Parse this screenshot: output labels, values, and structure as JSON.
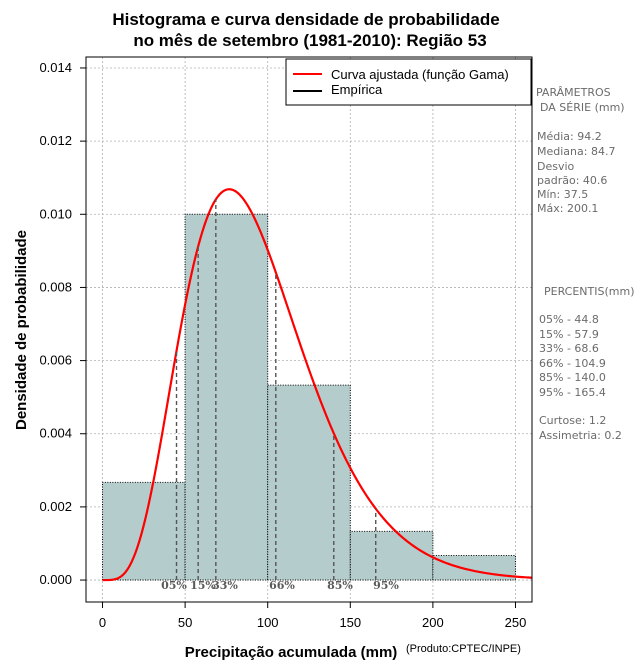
{
  "chart_data": {
    "type": "histogram",
    "title_line1": "Histograma e curva densidade de probabilidade",
    "title_line2": "no mês de setembro (1981-2010): Região 53",
    "xlabel": "Precipitação acumulada (mm)",
    "ylabel": "Densidade de probabilidade",
    "credit": "(Produto:CPTEC/INPE)",
    "xlim": [
      -10,
      260
    ],
    "ylim": [
      -0.0006,
      0.0143
    ],
    "x_ticks": [
      0,
      50,
      100,
      150,
      200,
      250
    ],
    "x_tick_labels": [
      "0",
      "50",
      "100",
      "150",
      "200",
      "250"
    ],
    "y_ticks": [
      0,
      0.002,
      0.004,
      0.006,
      0.008,
      0.01,
      0.012,
      0.014
    ],
    "y_tick_labels": [
      "0.000",
      "0.002",
      "0.004",
      "0.006",
      "0.008",
      "0.010",
      "0.012",
      "0.014"
    ],
    "grid": true,
    "bins": [
      {
        "start": 0,
        "end": 50,
        "density": 0.00267
      },
      {
        "start": 50,
        "end": 100,
        "density": 0.01
      },
      {
        "start": 100,
        "end": 150,
        "density": 0.00533
      },
      {
        "start": 150,
        "end": 200,
        "density": 0.00133
      },
      {
        "start": 200,
        "end": 250,
        "density": 0.00067
      }
    ],
    "gamma_fit": {
      "mean": 94.2,
      "sd": 40.6
    },
    "percentile_lines": [
      {
        "label": "05%",
        "value": 44.8
      },
      {
        "label": "15%",
        "value": 57.9
      },
      {
        "label": "33%",
        "value": 68.6
      },
      {
        "label": "66%",
        "value": 104.9
      },
      {
        "label": "85%",
        "value": 140.0
      },
      {
        "label": "95%",
        "value": 165.4
      }
    ],
    "legend": {
      "position": "top-right",
      "entries": [
        {
          "label": "Curva ajustada (função Gama)",
          "color": "#ff0000"
        },
        {
          "label": "Empírica",
          "color": "#000000"
        }
      ]
    },
    "colors": {
      "bar_fill": "#b4cccc",
      "curve": "#ff0000",
      "grid": "#b0b0b0",
      "percentile": "#555555"
    }
  },
  "side_panel": {
    "params_title_1": "PARÂMETROS",
    "params_title_2": "DA SÉRIE (mm)",
    "params": [
      "Média:  94.2",
      "Mediana:  84.7",
      "Desvio",
      "padrão:  40.6",
      "Mín:  37.5",
      "Máx:  200.1"
    ],
    "percentis_title": "PERCENTIS(mm)",
    "percentis": [
      "05% -  44.8",
      "15% -  57.9",
      "33% -  68.6",
      "66% -  104.9",
      "85% -  140.0",
      "95% -  165.4"
    ],
    "stats": [
      "Curtose:  1.2",
      "Assimetria:  0.2"
    ]
  }
}
